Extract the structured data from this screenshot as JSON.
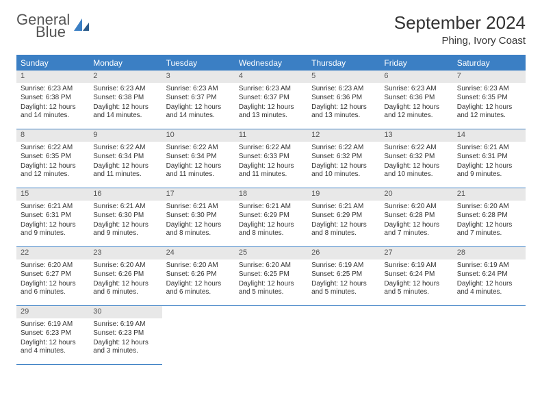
{
  "logo": {
    "line1": "General",
    "line2": "Blue"
  },
  "title": "September 2024",
  "location": "Phing, Ivory Coast",
  "colors": {
    "accent": "#3b7fc4",
    "dayhead_text": "#ffffff",
    "daynum_bg": "#e8e8e8",
    "text": "#333333",
    "background": "#ffffff"
  },
  "weekdays": [
    "Sunday",
    "Monday",
    "Tuesday",
    "Wednesday",
    "Thursday",
    "Friday",
    "Saturday"
  ],
  "days": [
    {
      "n": 1,
      "sr": "6:23 AM",
      "ss": "6:38 PM",
      "dl": "12 hours and 14 minutes."
    },
    {
      "n": 2,
      "sr": "6:23 AM",
      "ss": "6:38 PM",
      "dl": "12 hours and 14 minutes."
    },
    {
      "n": 3,
      "sr": "6:23 AM",
      "ss": "6:37 PM",
      "dl": "12 hours and 14 minutes."
    },
    {
      "n": 4,
      "sr": "6:23 AM",
      "ss": "6:37 PM",
      "dl": "12 hours and 13 minutes."
    },
    {
      "n": 5,
      "sr": "6:23 AM",
      "ss": "6:36 PM",
      "dl": "12 hours and 13 minutes."
    },
    {
      "n": 6,
      "sr": "6:23 AM",
      "ss": "6:36 PM",
      "dl": "12 hours and 12 minutes."
    },
    {
      "n": 7,
      "sr": "6:23 AM",
      "ss": "6:35 PM",
      "dl": "12 hours and 12 minutes."
    },
    {
      "n": 8,
      "sr": "6:22 AM",
      "ss": "6:35 PM",
      "dl": "12 hours and 12 minutes."
    },
    {
      "n": 9,
      "sr": "6:22 AM",
      "ss": "6:34 PM",
      "dl": "12 hours and 11 minutes."
    },
    {
      "n": 10,
      "sr": "6:22 AM",
      "ss": "6:34 PM",
      "dl": "12 hours and 11 minutes."
    },
    {
      "n": 11,
      "sr": "6:22 AM",
      "ss": "6:33 PM",
      "dl": "12 hours and 11 minutes."
    },
    {
      "n": 12,
      "sr": "6:22 AM",
      "ss": "6:32 PM",
      "dl": "12 hours and 10 minutes."
    },
    {
      "n": 13,
      "sr": "6:22 AM",
      "ss": "6:32 PM",
      "dl": "12 hours and 10 minutes."
    },
    {
      "n": 14,
      "sr": "6:21 AM",
      "ss": "6:31 PM",
      "dl": "12 hours and 9 minutes."
    },
    {
      "n": 15,
      "sr": "6:21 AM",
      "ss": "6:31 PM",
      "dl": "12 hours and 9 minutes."
    },
    {
      "n": 16,
      "sr": "6:21 AM",
      "ss": "6:30 PM",
      "dl": "12 hours and 9 minutes."
    },
    {
      "n": 17,
      "sr": "6:21 AM",
      "ss": "6:30 PM",
      "dl": "12 hours and 8 minutes."
    },
    {
      "n": 18,
      "sr": "6:21 AM",
      "ss": "6:29 PM",
      "dl": "12 hours and 8 minutes."
    },
    {
      "n": 19,
      "sr": "6:21 AM",
      "ss": "6:29 PM",
      "dl": "12 hours and 8 minutes."
    },
    {
      "n": 20,
      "sr": "6:20 AM",
      "ss": "6:28 PM",
      "dl": "12 hours and 7 minutes."
    },
    {
      "n": 21,
      "sr": "6:20 AM",
      "ss": "6:28 PM",
      "dl": "12 hours and 7 minutes."
    },
    {
      "n": 22,
      "sr": "6:20 AM",
      "ss": "6:27 PM",
      "dl": "12 hours and 6 minutes."
    },
    {
      "n": 23,
      "sr": "6:20 AM",
      "ss": "6:26 PM",
      "dl": "12 hours and 6 minutes."
    },
    {
      "n": 24,
      "sr": "6:20 AM",
      "ss": "6:26 PM",
      "dl": "12 hours and 6 minutes."
    },
    {
      "n": 25,
      "sr": "6:20 AM",
      "ss": "6:25 PM",
      "dl": "12 hours and 5 minutes."
    },
    {
      "n": 26,
      "sr": "6:19 AM",
      "ss": "6:25 PM",
      "dl": "12 hours and 5 minutes."
    },
    {
      "n": 27,
      "sr": "6:19 AM",
      "ss": "6:24 PM",
      "dl": "12 hours and 5 minutes."
    },
    {
      "n": 28,
      "sr": "6:19 AM",
      "ss": "6:24 PM",
      "dl": "12 hours and 4 minutes."
    },
    {
      "n": 29,
      "sr": "6:19 AM",
      "ss": "6:23 PM",
      "dl": "12 hours and 4 minutes."
    },
    {
      "n": 30,
      "sr": "6:19 AM",
      "ss": "6:23 PM",
      "dl": "12 hours and 3 minutes."
    }
  ],
  "labels": {
    "sunrise": "Sunrise:",
    "sunset": "Sunset:",
    "daylight": "Daylight:"
  },
  "grid": {
    "columns": 7,
    "rows": 5,
    "trailing_empty": 5
  }
}
